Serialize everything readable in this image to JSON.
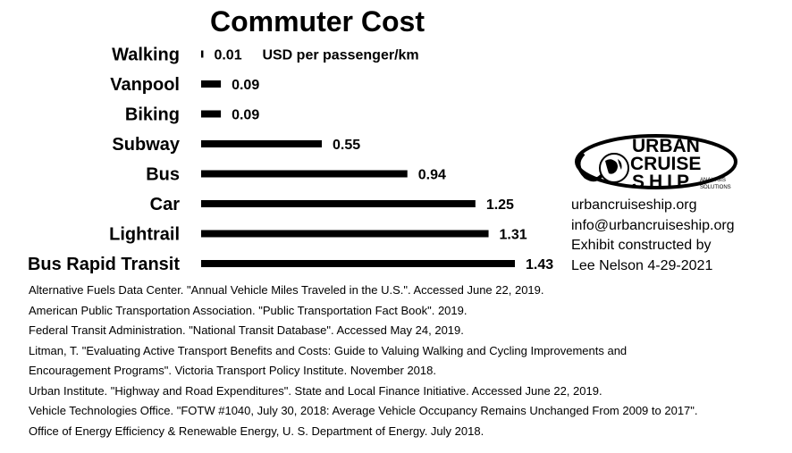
{
  "chart_data": {
    "type": "bar",
    "orientation": "horizontal",
    "title": "Commuter Cost",
    "unit": "USD per passenger/km",
    "categories": [
      "Walking",
      "Vanpool",
      "Biking",
      "Subway",
      "Bus",
      "Car",
      "Lightrail",
      "Bus Rapid Transit"
    ],
    "values": [
      0.01,
      0.09,
      0.09,
      0.55,
      0.94,
      1.25,
      1.31,
      1.43
    ],
    "value_labels": [
      "0.01",
      "0.09",
      "0.09",
      "0.55",
      "0.94",
      "1.25",
      "1.31",
      "1.43"
    ],
    "xlim": [
      0,
      1.43
    ],
    "grid": false,
    "legend": "none",
    "bar_color": "#000000"
  },
  "brand": {
    "logo_line1": "URBAN",
    "logo_line2": "CRUISE",
    "logo_line3": "SHIP",
    "logo_tag1": "ANALYSIS",
    "logo_tag2": "SOLUTIONS"
  },
  "contact": {
    "website": "urbancruiseship.org",
    "email": "info@urbancruiseship.org",
    "credit_line1": "Exhibit constructed by",
    "credit_line2": "Lee Nelson 4-29-2021"
  },
  "sources": [
    "Alternative Fuels Data Center. \"Annual Vehicle Miles Traveled in the U.S.\". Accessed June 22, 2019.",
    "American Public Transportation Association. \"Public Transportation Fact Book\". 2019.",
    "Federal Transit Administration. \"National Transit Database\". Accessed May 24, 2019.",
    "Litman, T. \"Evaluating Active Transport Benefits and Costs: Guide to Valuing Walking and Cycling Improvements and",
    "Encouragement Programs\". Victoria Transport Policy Institute. November 2018.",
    "Urban Institute. \"Highway and Road Expenditures\". State and Local Finance Initiative. Accessed June 22, 2019.",
    "Vehicle Technologies Office. \"FOTW #1040, July 30, 2018: Average Vehicle Occupancy Remains Unchanged From 2009 to 2017\".",
    "Office of Energy Efficiency & Renewable Energy, U. S. Department of Energy. July 2018."
  ]
}
